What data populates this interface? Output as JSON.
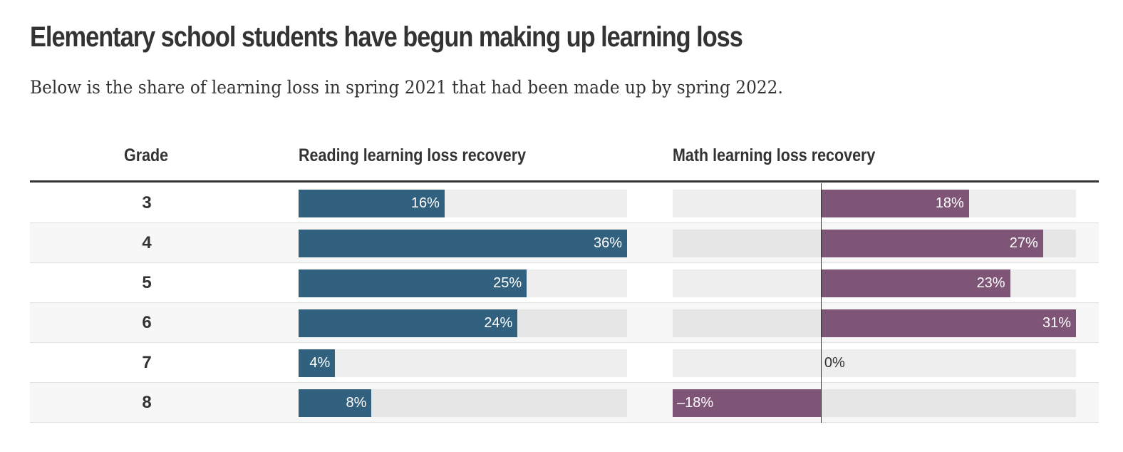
{
  "title": "Elementary school students have begun making up learning loss",
  "subtitle": "Below is the share of learning loss in spring 2021 that had been made up by spring 2022.",
  "colors": {
    "reading": "#31617f",
    "math": "#7f5577",
    "track": "#eeeeee"
  },
  "chart_data": {
    "type": "table",
    "columns": [
      "Grade",
      "Reading learning loss recovery",
      "Math learning loss recovery"
    ],
    "categories": [
      "3",
      "4",
      "5",
      "6",
      "7",
      "8"
    ],
    "series": [
      {
        "name": "Reading learning loss recovery",
        "values": [
          16,
          36,
          25,
          24,
          4,
          8
        ],
        "labels": [
          "16%",
          "36%",
          "25%",
          "24%",
          "4%",
          "8%"
        ],
        "range": [
          0,
          36
        ]
      },
      {
        "name": "Math learning loss recovery",
        "values": [
          18,
          27,
          23,
          31,
          0,
          -18
        ],
        "labels": [
          "18%",
          "27%",
          "23%",
          "31%",
          "0%",
          "–18%"
        ],
        "range": [
          -18,
          31
        ]
      }
    ]
  }
}
